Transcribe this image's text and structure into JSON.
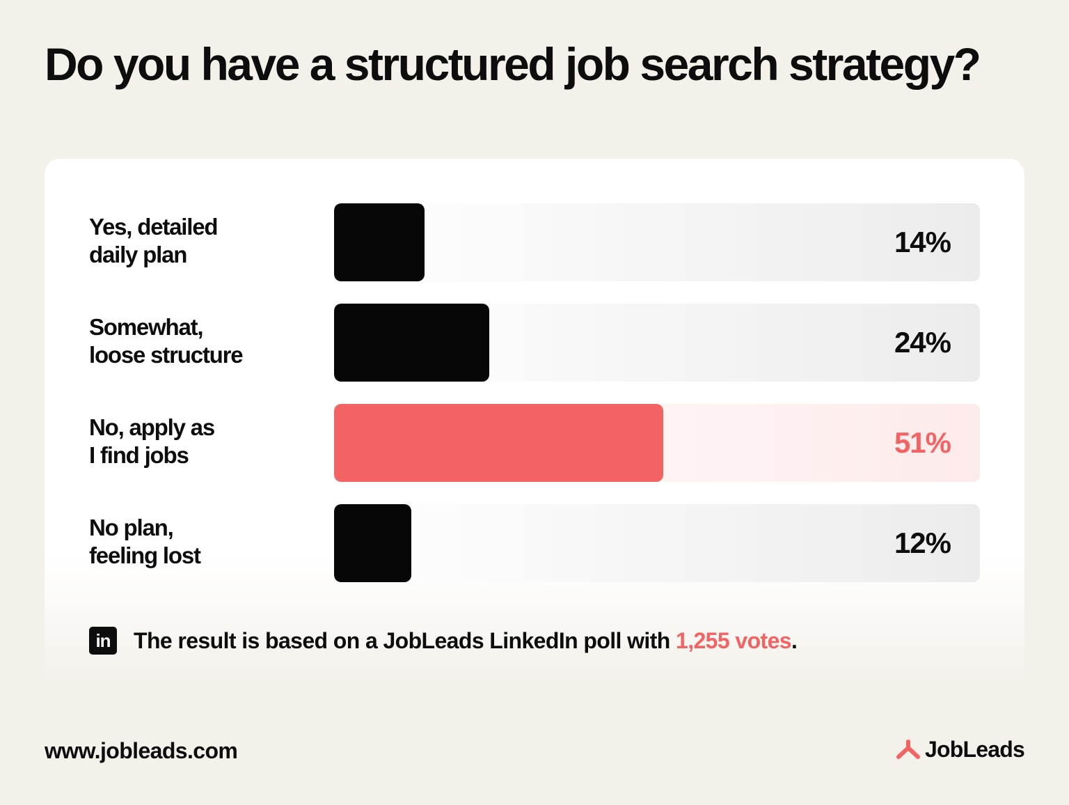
{
  "title": "Do you have a structured job search strategy?",
  "chart_data": {
    "type": "bar",
    "orientation": "horizontal",
    "categories": [
      "Yes, detailed daily plan",
      "Somewhat, loose structure",
      "No, apply as I find jobs",
      "No plan, feeling lost"
    ],
    "category_lines": [
      [
        "Yes, detailed",
        "daily plan"
      ],
      [
        "Somewhat,",
        "loose structure"
      ],
      [
        "No, apply as",
        "I find jobs"
      ],
      [
        "No plan,",
        "feeling lost"
      ]
    ],
    "values": [
      14,
      24,
      51,
      12
    ],
    "value_labels": [
      "14%",
      "24%",
      "51%",
      "12%"
    ],
    "xlim": [
      0,
      100
    ],
    "highlight_index": 2,
    "colors": {
      "bar": "#070707",
      "highlight": "#f26464"
    }
  },
  "note": {
    "icon": "linkedin-icon",
    "icon_text": "in",
    "text_before": "The result is based on a JobLeads LinkedIn poll with ",
    "votes": "1,255 votes",
    "text_after": "."
  },
  "footer": {
    "url": "www.jobleads.com",
    "brand": "JobLeads",
    "brand_icon": "jobleads-logo-icon"
  },
  "colors": {
    "background": "#f4f1eb",
    "card": "#ffffff",
    "accent": "#f26464",
    "text": "#0d0d0d"
  }
}
